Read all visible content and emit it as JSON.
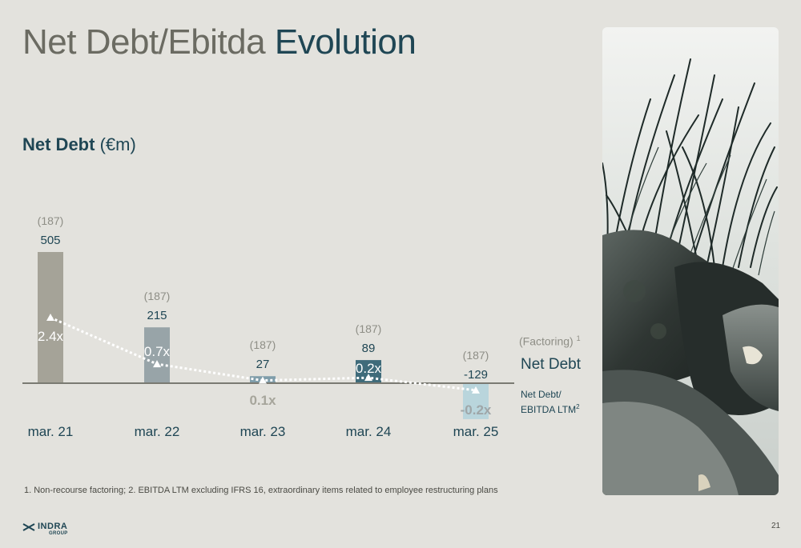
{
  "title": {
    "part1": "Net Debt/Ebitda",
    "part2": "Evolution"
  },
  "subtitle": {
    "bold": "Net Debt",
    "unit": "(€m)"
  },
  "chart_data": {
    "type": "bar",
    "categories": [
      "mar. 21",
      "mar. 22",
      "mar. 23",
      "mar. 24",
      "mar. 25"
    ],
    "series": [
      {
        "name": "Net Debt",
        "values": [
          505,
          215,
          27,
          89,
          -129
        ],
        "labels": [
          "505",
          "215",
          "27",
          "89",
          "-129"
        ]
      },
      {
        "name": "Net Debt/ EBITDA LTM²",
        "values": [
          2.4,
          0.7,
          0.1,
          0.2,
          -0.2
        ],
        "labels": [
          "2.4x",
          "0.7x",
          "0.1x",
          "0.2x",
          "-0.2x"
        ]
      }
    ],
    "factoring": [
      "(187)",
      "(187)",
      "(187)",
      "(187)",
      "(187)"
    ],
    "legend": {
      "factoring": "(Factoring)",
      "factoring_sup": "1",
      "net_debt": "Net Debt",
      "ratio_line1": "Net Debt/",
      "ratio_line2": "EBITDA LTM",
      "ratio_sup": "2"
    },
    "bar_colors": [
      "#a5a398",
      "#98a4a8",
      "#7f9daa",
      "#3f6b7a",
      "#b9d5dc"
    ],
    "ratio_label_colors": [
      "#ffffff",
      "#ffffff",
      "#a6a59b",
      "#ffffff",
      "#9fa6a8"
    ]
  },
  "footnote": "1. Non-recourse factoring;  2. EBITDA LTM excluding IFRS 16, extraordinary items related to employee restructuring plans",
  "logo": {
    "main": "INDRA",
    "sub": "GROUP"
  },
  "page_number": "21",
  "colors": {
    "background": "#e3e2dd",
    "dark_teal": "#1f4654",
    "gray_text": "#6b6b62"
  },
  "photo_description_icon": "grass-rocks-photo"
}
